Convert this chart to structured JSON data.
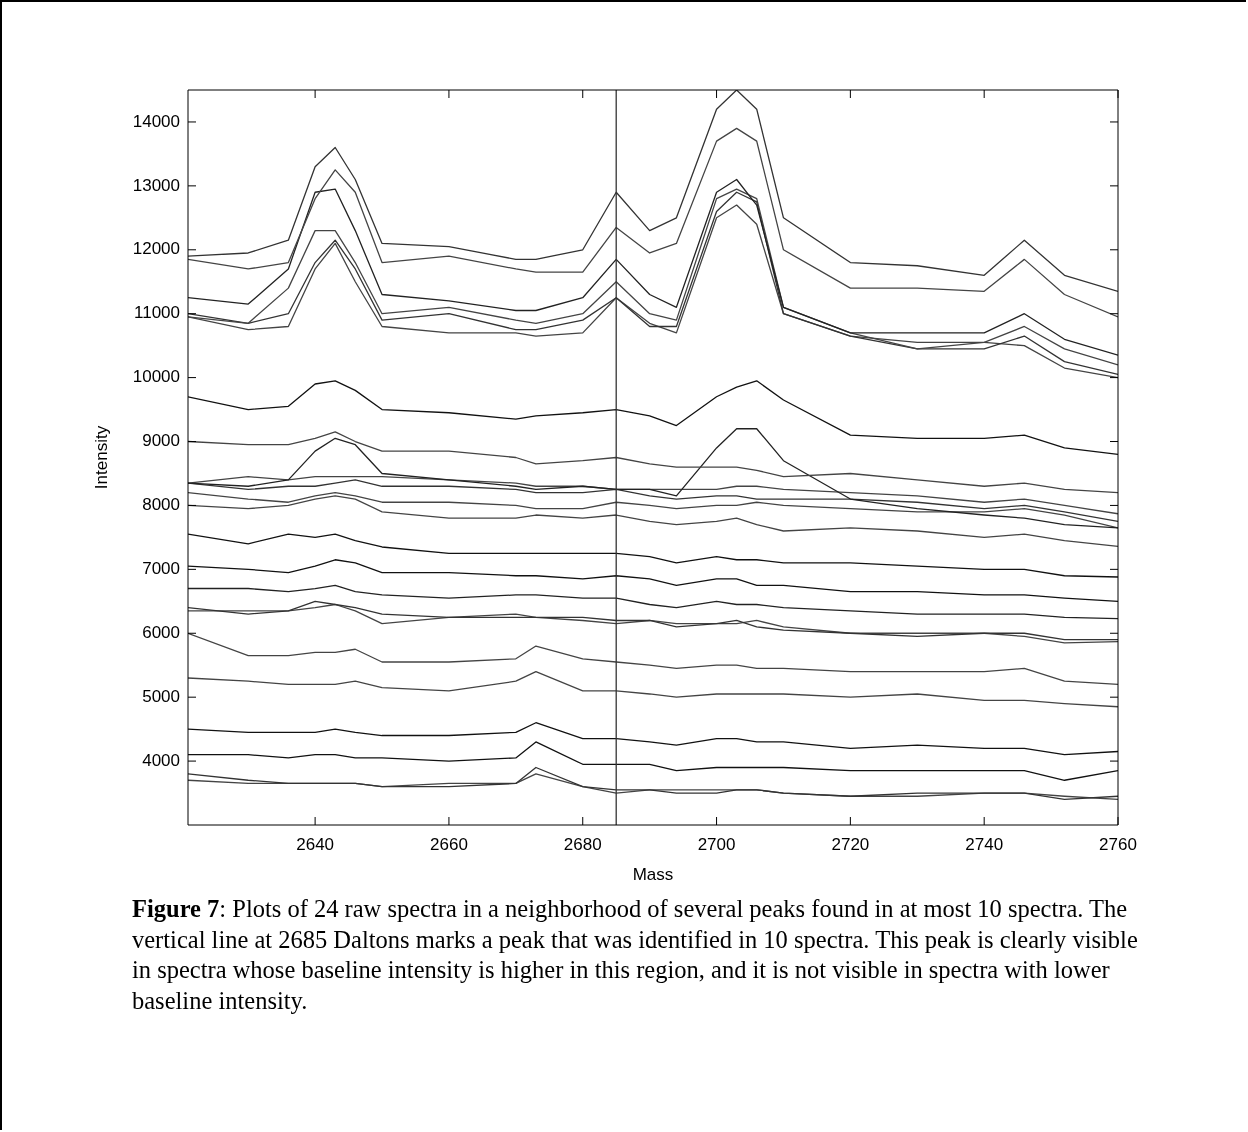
{
  "chart_data": {
    "type": "line",
    "xlabel": "Mass",
    "ylabel": "Intensity",
    "marker": "none",
    "line_style": "solid",
    "xlim": [
      2621,
      2760
    ],
    "xticks": [
      2640,
      2660,
      2680,
      2700,
      2720,
      2740,
      2760
    ],
    "ylim": [
      3000,
      14500
    ],
    "yticks": [
      4000,
      5000,
      6000,
      7000,
      8000,
      9000,
      10000,
      11000,
      12000,
      13000,
      14000
    ],
    "x": [
      2621,
      2630,
      2636,
      2640,
      2643,
      2646,
      2650,
      2660,
      2670,
      2673,
      2680,
      2685,
      2690,
      2694,
      2700,
      2703,
      2706,
      2710,
      2720,
      2730,
      2740,
      2746,
      2752,
      2760
    ],
    "series": [
      {
        "color": "#333333",
        "values": [
          11900,
          11950,
          12150,
          13300,
          13600,
          13100,
          12100,
          12050,
          11850,
          11850,
          12000,
          12900,
          12300,
          12500,
          14200,
          14500,
          14200,
          12500,
          11800,
          11750,
          11600,
          12150,
          11600,
          11350
        ]
      },
      {
        "color": "#444444",
        "values": [
          11850,
          11700,
          11800,
          12800,
          13250,
          12900,
          11800,
          11900,
          11700,
          11650,
          11650,
          12350,
          11950,
          12100,
          13700,
          13900,
          13700,
          12000,
          11400,
          11400,
          11350,
          11850,
          11300,
          10950
        ]
      },
      {
        "color": "#222222",
        "values": [
          11250,
          11150,
          11700,
          12900,
          12950,
          12300,
          11300,
          11200,
          11050,
          11050,
          11250,
          11850,
          11300,
          11100,
          12900,
          13100,
          12700,
          11100,
          10700,
          10700,
          10700,
          11000,
          10600,
          10350
        ]
      },
      {
        "color": "#444444",
        "values": [
          10950,
          10850,
          11400,
          12300,
          12300,
          11800,
          11000,
          11100,
          10900,
          10850,
          11000,
          11500,
          11000,
          10900,
          12800,
          12950,
          12800,
          11100,
          10700,
          10450,
          10550,
          10800,
          10450,
          10200
        ]
      },
      {
        "color": "#333333",
        "values": [
          11000,
          10850,
          11000,
          11800,
          12150,
          11700,
          10900,
          11000,
          10750,
          10750,
          10900,
          11250,
          10800,
          10800,
          12600,
          12900,
          12750,
          11000,
          10650,
          10450,
          10450,
          10650,
          10250,
          10050
        ]
      },
      {
        "color": "#444444",
        "values": [
          10950,
          10750,
          10800,
          11700,
          12100,
          11500,
          10800,
          10700,
          10700,
          10650,
          10700,
          11250,
          10850,
          10700,
          12500,
          12700,
          12400,
          11000,
          10650,
          10550,
          10550,
          10500,
          10150,
          10000
        ]
      },
      {
        "color": "#111111",
        "values": [
          9700,
          9500,
          9550,
          9900,
          9950,
          9800,
          9500,
          9450,
          9350,
          9400,
          9450,
          9500,
          9400,
          9250,
          9700,
          9850,
          9950,
          9650,
          9100,
          9050,
          9050,
          9100,
          8900,
          8800
        ]
      },
      {
        "color": "#444444",
        "values": [
          9000,
          8950,
          8950,
          9050,
          9150,
          9000,
          8850,
          8850,
          8750,
          8650,
          8700,
          8750,
          8650,
          8600,
          8600,
          8600,
          8550,
          8450,
          8500,
          8400,
          8300,
          8350,
          8250,
          8200
        ]
      },
      {
        "color": "#222222",
        "values": [
          8350,
          8300,
          8400,
          8850,
          9050,
          8950,
          8500,
          8400,
          8300,
          8250,
          8300,
          8250,
          8250,
          8150,
          8900,
          9200,
          9200,
          8700,
          8100,
          7950,
          7850,
          7800,
          7700,
          7650
        ]
      },
      {
        "color": "#444444",
        "values": [
          8350,
          8450,
          8400,
          8450,
          8450,
          8450,
          8450,
          8400,
          8350,
          8300,
          8300,
          8250,
          8250,
          8250,
          8250,
          8300,
          8300,
          8250,
          8200,
          8150,
          8050,
          8100,
          8000,
          7870
        ]
      },
      {
        "color": "#333333",
        "values": [
          8350,
          8250,
          8300,
          8300,
          8350,
          8400,
          8300,
          8300,
          8250,
          8200,
          8200,
          8250,
          8150,
          8100,
          8150,
          8150,
          8100,
          8100,
          8100,
          8050,
          7950,
          8000,
          7900,
          7750
        ]
      },
      {
        "color": "#444444",
        "values": [
          8200,
          8100,
          8050,
          8150,
          8200,
          8150,
          8050,
          8050,
          8000,
          7950,
          7950,
          8050,
          8000,
          7950,
          8000,
          8000,
          8050,
          8000,
          7950,
          7900,
          7900,
          7950,
          7850,
          7650
        ]
      },
      {
        "color": "#444444",
        "values": [
          8000,
          7950,
          8000,
          8100,
          8150,
          8100,
          7900,
          7800,
          7800,
          7850,
          7800,
          7850,
          7750,
          7700,
          7750,
          7800,
          7700,
          7600,
          7650,
          7600,
          7500,
          7550,
          7450,
          7360
        ]
      },
      {
        "color": "#111111",
        "values": [
          7550,
          7400,
          7550,
          7500,
          7550,
          7450,
          7350,
          7250,
          7250,
          7250,
          7250,
          7250,
          7200,
          7100,
          7200,
          7150,
          7150,
          7100,
          7100,
          7050,
          7000,
          7000,
          6900,
          6880
        ]
      },
      {
        "color": "#111111",
        "values": [
          7050,
          7000,
          6950,
          7050,
          7150,
          7100,
          6950,
          6950,
          6900,
          6900,
          6850,
          6900,
          6850,
          6750,
          6850,
          6850,
          6750,
          6750,
          6650,
          6650,
          6600,
          6600,
          6550,
          6500
        ]
      },
      {
        "color": "#222222",
        "values": [
          6700,
          6700,
          6650,
          6700,
          6750,
          6650,
          6600,
          6550,
          6600,
          6600,
          6550,
          6550,
          6450,
          6400,
          6500,
          6450,
          6450,
          6400,
          6350,
          6300,
          6300,
          6300,
          6250,
          6230
        ]
      },
      {
        "color": "#333333",
        "values": [
          6400,
          6300,
          6350,
          6500,
          6450,
          6400,
          6300,
          6250,
          6250,
          6250,
          6250,
          6200,
          6200,
          6100,
          6150,
          6200,
          6100,
          6050,
          6000,
          5950,
          6000,
          6000,
          5900,
          5900
        ]
      },
      {
        "color": "#444444",
        "values": [
          6350,
          6350,
          6350,
          6400,
          6450,
          6350,
          6150,
          6250,
          6300,
          6250,
          6200,
          6150,
          6200,
          6150,
          6150,
          6150,
          6200,
          6100,
          6000,
          6000,
          6000,
          5950,
          5850,
          5870
        ]
      },
      {
        "color": "#444444",
        "values": [
          6000,
          5650,
          5650,
          5700,
          5700,
          5750,
          5550,
          5550,
          5600,
          5800,
          5600,
          5550,
          5500,
          5450,
          5500,
          5500,
          5450,
          5450,
          5400,
          5400,
          5400,
          5450,
          5250,
          5200
        ]
      },
      {
        "color": "#444444",
        "values": [
          5300,
          5250,
          5200,
          5200,
          5200,
          5250,
          5150,
          5100,
          5250,
          5400,
          5100,
          5100,
          5050,
          5000,
          5050,
          5050,
          5050,
          5050,
          5000,
          5050,
          4950,
          4950,
          4900,
          4850
        ]
      },
      {
        "color": "#111111",
        "values": [
          4500,
          4450,
          4450,
          4450,
          4500,
          4450,
          4400,
          4400,
          4450,
          4600,
          4350,
          4350,
          4300,
          4250,
          4350,
          4350,
          4300,
          4300,
          4200,
          4250,
          4200,
          4200,
          4100,
          4150
        ]
      },
      {
        "color": "#111111",
        "values": [
          4100,
          4100,
          4050,
          4100,
          4100,
          4050,
          4050,
          4000,
          4050,
          4300,
          3950,
          3950,
          3950,
          3850,
          3900,
          3900,
          3900,
          3900,
          3850,
          3850,
          3850,
          3850,
          3700,
          3850
        ]
      },
      {
        "color": "#333333",
        "values": [
          3800,
          3700,
          3650,
          3650,
          3650,
          3650,
          3600,
          3600,
          3650,
          3900,
          3600,
          3550,
          3550,
          3500,
          3500,
          3550,
          3550,
          3500,
          3450,
          3500,
          3500,
          3500,
          3400,
          3450
        ]
      },
      {
        "color": "#444444",
        "values": [
          3700,
          3650,
          3650,
          3650,
          3650,
          3650,
          3600,
          3650,
          3650,
          3800,
          3600,
          3500,
          3550,
          3550,
          3550,
          3550,
          3550,
          3500,
          3450,
          3450,
          3500,
          3500,
          3450,
          3400
        ]
      }
    ],
    "ref_lines": [
      {
        "axis": "x",
        "value": 2685,
        "color": "#333333",
        "line_style": "solid"
      }
    ],
    "annotations": [
      "Figure 7: Plots of 24 raw spectra in a neighborhood of several peaks found in at most 10 spectra. The vertical line at 2685 Daltons marks a peak that was identified in 10 spectra. This peak is clearly visible in spectra whose baseline intensity is higher in this region, and it is not visible in spectra with lower baseline intensity."
    ]
  }
}
